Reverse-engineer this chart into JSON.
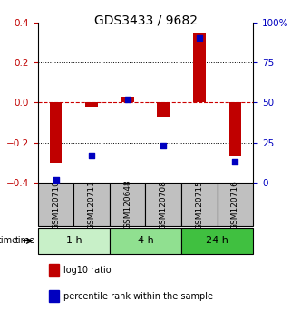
{
  "title": "GDS3433 / 9682",
  "samples": [
    "GSM120710",
    "GSM120711",
    "GSM120648",
    "GSM120708",
    "GSM120715",
    "GSM120716"
  ],
  "time_groups": [
    {
      "label": "1 h",
      "samples": [
        "GSM120710",
        "GSM120711"
      ],
      "color": "#c8f0c8"
    },
    {
      "label": "4 h",
      "samples": [
        "GSM120648",
        "GSM120708"
      ],
      "color": "#90e090"
    },
    {
      "label": "24 h",
      "samples": [
        "GSM120715",
        "GSM120716"
      ],
      "color": "#40c040"
    }
  ],
  "log10_ratio": [
    -0.3,
    -0.02,
    0.03,
    -0.07,
    0.35,
    -0.27
  ],
  "percentile_rank": [
    1.5,
    17.0,
    52.0,
    23.0,
    90.0,
    13.0
  ],
  "ylim_left": [
    -0.4,
    0.4
  ],
  "ylim_right": [
    0,
    100
  ],
  "left_ticks": [
    -0.4,
    -0.2,
    0.0,
    0.2,
    0.4
  ],
  "right_ticks": [
    0,
    25,
    50,
    75,
    100
  ],
  "bar_color": "#c00000",
  "dot_color": "#0000c0",
  "hline_color": "#cc0000",
  "grid_color": "#000000",
  "legend_red_label": "log10 ratio",
  "legend_blue_label": "percentile rank within the sample",
  "time_label": "time",
  "header_bg": "#c0c0c0",
  "header_border": "#000000"
}
